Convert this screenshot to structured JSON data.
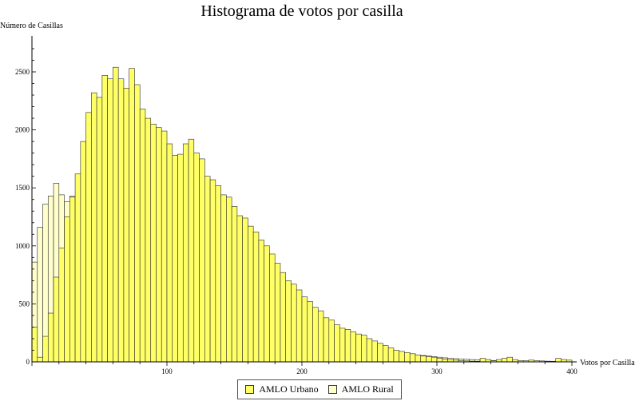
{
  "chart_data": {
    "type": "bar",
    "title": "Histograma de votos por casilla",
    "xlabel": "Votos por Casilla",
    "ylabel": "Número de Casillas",
    "xlim": [
      0,
      400
    ],
    "ylim": [
      0,
      2800
    ],
    "bin_width": 4,
    "x_ticks": [
      100,
      200,
      300,
      400
    ],
    "x_tick_labels": [
      "100",
      "200",
      "300",
      "400"
    ],
    "y_ticks": [
      0,
      500,
      1000,
      1500,
      2000,
      2500
    ],
    "y_tick_labels": [
      "0",
      "500",
      "1000",
      "1500",
      "2000",
      "2500"
    ],
    "grid": false,
    "legend_position": "bottom-center",
    "series": [
      {
        "name": "AMLO Urbano",
        "color": "#ffff66",
        "values": [
          300,
          40,
          220,
          420,
          730,
          980,
          1250,
          1420,
          1620,
          1900,
          2150,
          2320,
          2280,
          2470,
          2440,
          2540,
          2440,
          2360,
          2530,
          2390,
          2180,
          2100,
          2050,
          2020,
          1990,
          1880,
          1780,
          1790,
          1880,
          1920,
          1800,
          1750,
          1600,
          1570,
          1520,
          1440,
          1420,
          1340,
          1260,
          1240,
          1170,
          1120,
          1050,
          1000,
          930,
          850,
          770,
          700,
          670,
          620,
          560,
          520,
          470,
          440,
          380,
          360,
          320,
          290,
          280,
          260,
          240,
          230,
          200,
          180,
          160,
          140,
          120,
          100,
          90,
          80,
          70,
          60,
          50,
          45,
          40,
          30,
          25,
          20,
          15,
          10,
          8,
          6,
          5,
          30,
          20,
          10,
          20,
          30,
          40,
          20,
          10,
          10,
          15,
          10,
          8,
          6,
          5,
          30,
          20,
          15
        ]
      },
      {
        "name": "AMLO Rural",
        "color": "#ffffcc",
        "values": [
          860,
          1160,
          1360,
          1430,
          1540,
          1440,
          1380,
          1430,
          1390,
          1400,
          1410,
          1410,
          1420,
          1370,
          1380,
          1350,
          1330,
          1280,
          1330,
          1320,
          1290,
          1300,
          1200,
          1190,
          1150,
          1080,
          1040,
          1030,
          990,
          950,
          920,
          900,
          860,
          840,
          820,
          790,
          720,
          690,
          660,
          620,
          610,
          570,
          540,
          500,
          460,
          440,
          420,
          390,
          370,
          360,
          340,
          330,
          300,
          280,
          260,
          240,
          220,
          200,
          190,
          180,
          170,
          160,
          150,
          140,
          130,
          110,
          100,
          90,
          80,
          70,
          70,
          60,
          55,
          50,
          45,
          40,
          35,
          30,
          28,
          25,
          22,
          20,
          18,
          15,
          15,
          12,
          10,
          10,
          8,
          8,
          6,
          6,
          5,
          5,
          4,
          4,
          3,
          3,
          2,
          2
        ]
      }
    ]
  },
  "legend": {
    "items": [
      {
        "label": "AMLO Urbano",
        "color": "#ffff66"
      },
      {
        "label": "AMLO Rural",
        "color": "#ffffcc"
      }
    ]
  }
}
